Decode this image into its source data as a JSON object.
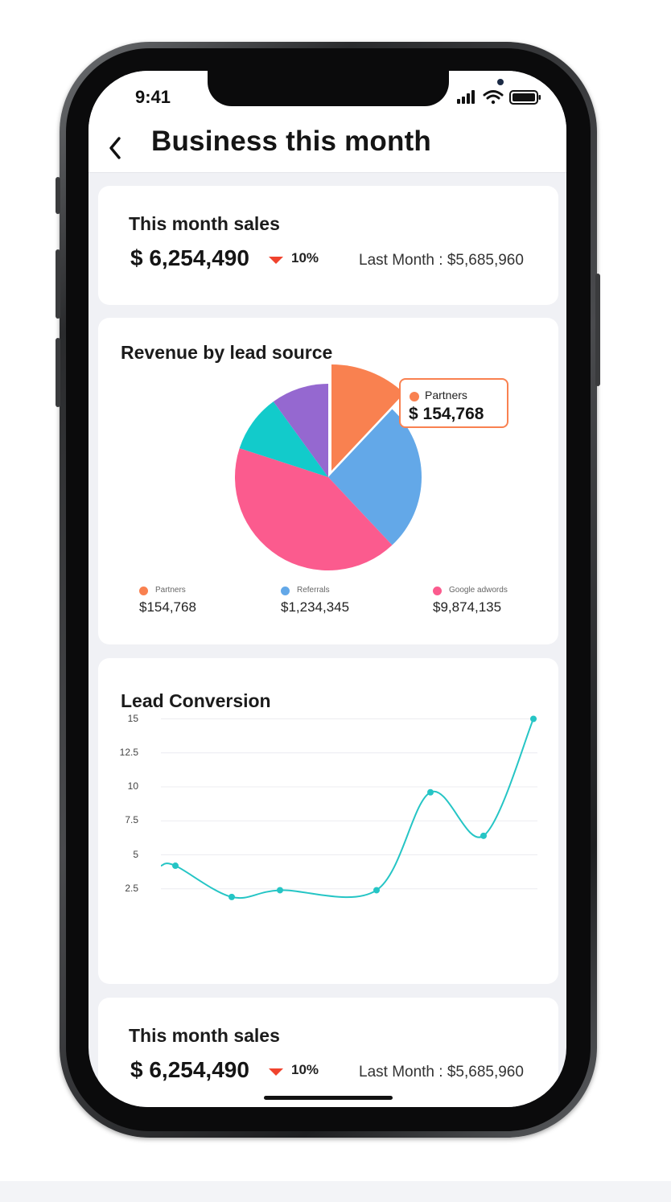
{
  "status_bar": {
    "time": "9:41"
  },
  "nav": {
    "title": "Business this month"
  },
  "sales_card": {
    "title": "This month sales",
    "amount": "$ 6,254,490",
    "change": "10%",
    "last_month": "Last Month : $5,685,960"
  },
  "revenue_card": {
    "title": "Revenue by lead source",
    "tooltip": {
      "label": "Partners",
      "value": "$ 154,768"
    },
    "legend": [
      {
        "label": "Partners",
        "value": "$154,768",
        "color": "#f98150"
      },
      {
        "label": "Referrals",
        "value": "$1,234,345",
        "color": "#63a8e8"
      },
      {
        "label": "Google adwords",
        "value": "$9,874,135",
        "color": "#fb5b8e"
      }
    ]
  },
  "lead_card": {
    "title": "Lead Conversion"
  },
  "sales_card_2": {
    "title": "This month sales",
    "amount": "$ 6,254,490",
    "change": "10%",
    "last_month": "Last Month : $5,685,960"
  },
  "chart_data": [
    {
      "type": "pie",
      "title": "Revenue by lead source",
      "slices": [
        {
          "name": "Partners",
          "value": 12,
          "color": "#f98150",
          "exploded": true
        },
        {
          "name": "Referrals",
          "value": 26,
          "color": "#63a8e8"
        },
        {
          "name": "Google adwords",
          "value": 42,
          "color": "#fb5b8e"
        },
        {
          "value": 10,
          "color": "#12cbcb"
        },
        {
          "value": 10,
          "color": "#9568d0"
        }
      ]
    },
    {
      "type": "line",
      "title": "Lead Conversion",
      "yticks": [
        2.5,
        5,
        7.5,
        10,
        12.5,
        15
      ],
      "ylim": [
        0,
        15
      ],
      "grid": true,
      "color": "#25c5c5",
      "points": [
        {
          "x": 1,
          "y": 4.2
        },
        {
          "x": 2,
          "y": 1.9
        },
        {
          "x": 3,
          "y": 2.4
        },
        {
          "x": 4,
          "y": 2.4
        },
        {
          "x": 5,
          "y": 9.6
        },
        {
          "x": 6,
          "y": 6.4
        },
        {
          "x": 7,
          "y": 15
        }
      ]
    }
  ]
}
